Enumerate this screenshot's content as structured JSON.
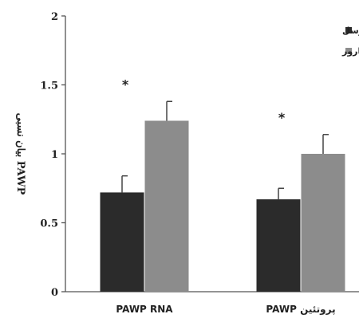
{
  "chart_data": {
    "type": "bar",
    "categories": [
      "PAWP RNA",
      "PAWP پروتئین"
    ],
    "series": [
      {
        "name": "واریکوسل",
        "values": [
          0.72,
          0.67
        ],
        "errors": [
          0.12,
          0.08
        ],
        "color": "#2b2b2b"
      },
      {
        "name": "بارور",
        "values": [
          1.24,
          1.0
        ],
        "errors": [
          0.14,
          0.14
        ],
        "color": "#8c8c8c"
      }
    ],
    "significance": [
      "*",
      "*"
    ],
    "ylabel": "بیان نسبی PAWP",
    "ylim": [
      0,
      2
    ],
    "yticks": [
      0,
      0.5,
      1,
      1.5,
      2
    ],
    "ytick_labels": [
      "0",
      "0.5",
      "1",
      "1.5",
      "2"
    ],
    "legend_position": "top-right",
    "grid": false
  }
}
